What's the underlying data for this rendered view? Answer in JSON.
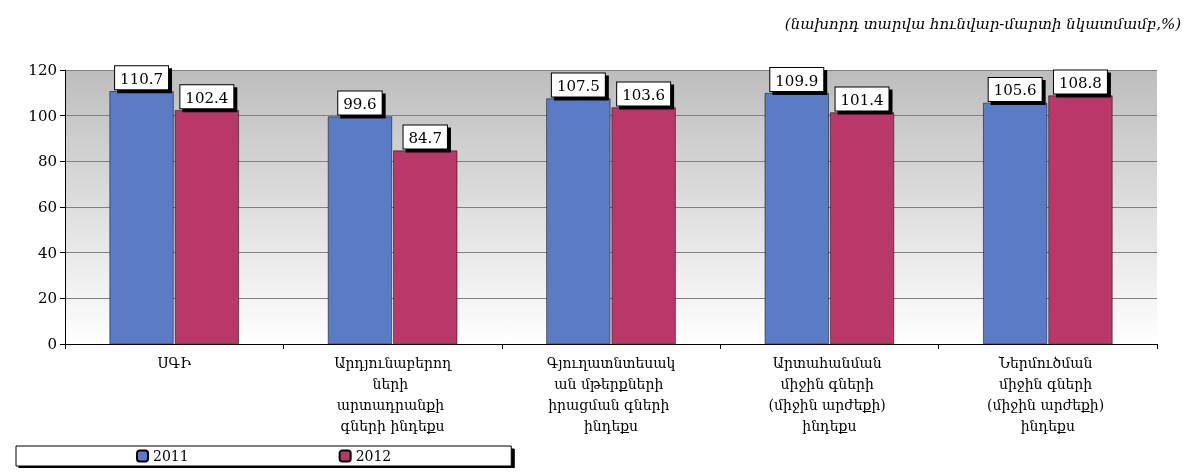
{
  "chart_data": {
    "type": "bar",
    "subtitle": "(նախորդ տարվա հունվար-մարտի նկատմամբ,%)",
    "categories": [
      "ՍԳԻ",
      "Արդյունաբերողների արտադրանքի գների ինդեքս",
      "Գյուղատնտեսական մթերքների իրացման գների ինդեքս",
      "Արտահանման միջին գների (միջին արժեքի) ինդեքս",
      "Ներմուծման միջին գների (միջին արժեքի) ինդեքս"
    ],
    "series": [
      {
        "name": "2011",
        "color": "#5a7cc4",
        "values": [
          110.7,
          99.6,
          107.5,
          109.9,
          105.6
        ]
      },
      {
        "name": "2012",
        "color": "#b8386a",
        "values": [
          102.4,
          84.7,
          103.6,
          101.4,
          108.8
        ]
      }
    ],
    "ylim": [
      0,
      120
    ],
    "yticks": [
      0,
      20,
      40,
      60,
      80,
      100,
      120
    ],
    "grid": "y",
    "legend": "bottom left",
    "data_labels": true
  }
}
